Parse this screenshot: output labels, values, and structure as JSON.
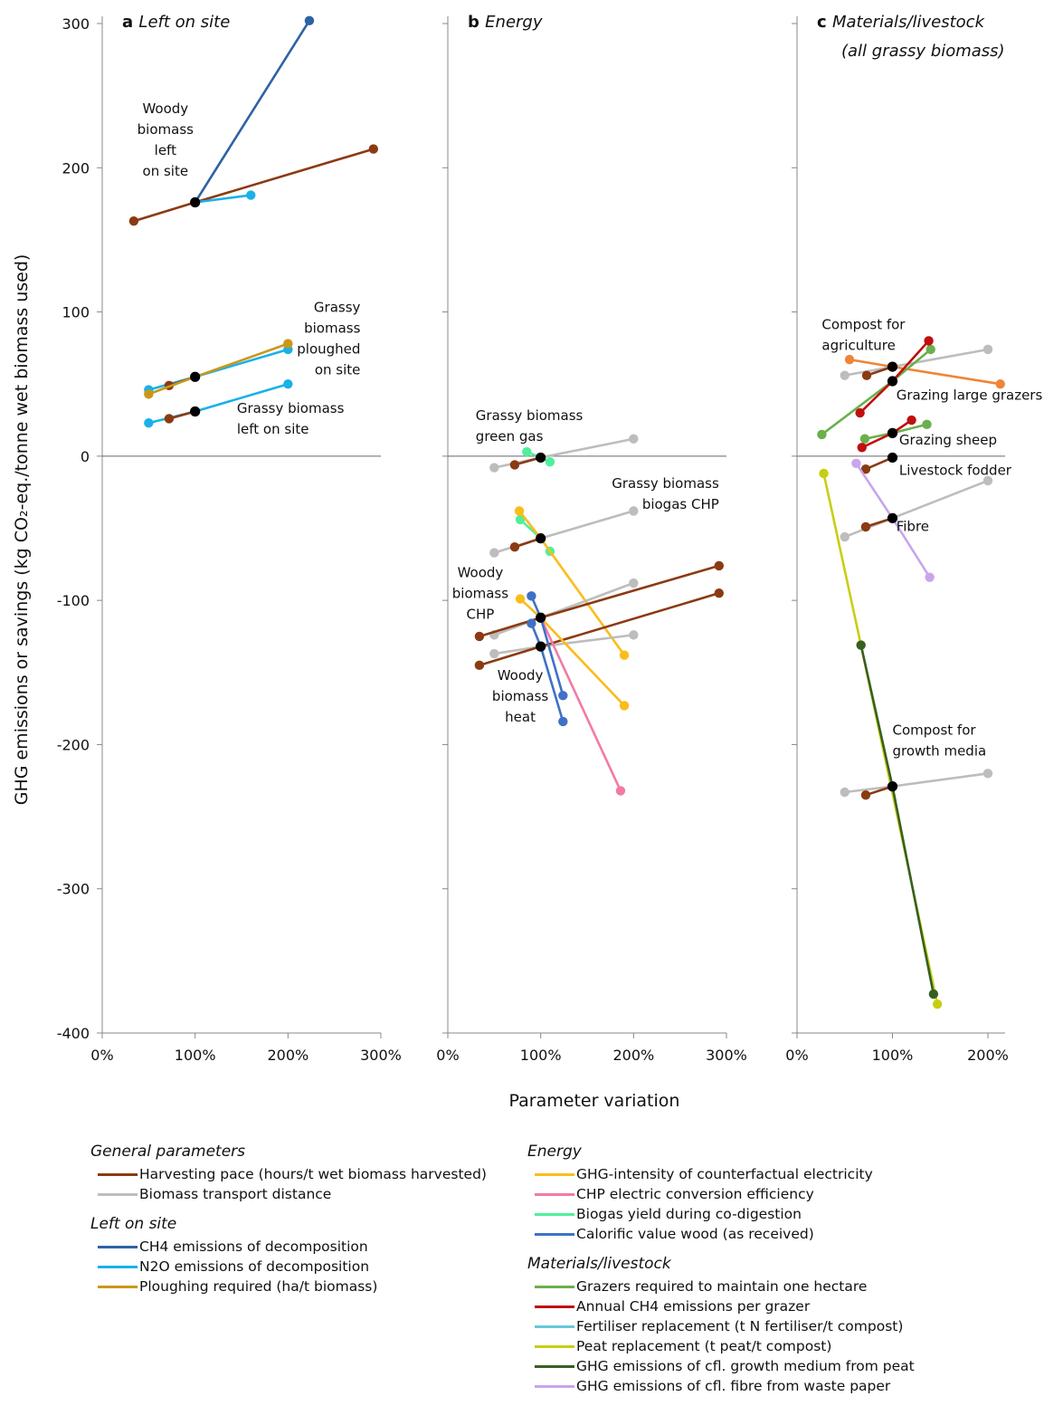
{
  "ylabel": "GHG emissions or savings (kg CO₂-eq./tonne wet biomass used)",
  "xlabel": "Parameter variation",
  "chart_data": [
    {
      "type": "line",
      "id": "a",
      "letter": "a",
      "title_lines": [
        "Left on site"
      ],
      "xlim": [
        0,
        300
      ],
      "ylim": [
        -400,
        300
      ],
      "xticks": [
        "0%",
        "100%",
        "200%",
        "300%"
      ],
      "yticks": [
        "300",
        "200",
        "100",
        "0",
        "-100",
        "-200",
        "-300",
        "-400"
      ],
      "series": [
        {
          "param": "ch4",
          "x": [
            100,
            223
          ],
          "y": [
            176,
            302
          ]
        },
        {
          "param": "harvest",
          "x": [
            34,
            100,
            292
          ],
          "y": [
            163,
            176,
            213
          ]
        },
        {
          "param": "n2o",
          "x": [
            100,
            160
          ],
          "y": [
            176,
            181
          ]
        },
        {
          "param": "n2o",
          "x": [
            50,
            100,
            200
          ],
          "y": [
            46,
            55,
            74
          ]
        },
        {
          "param": "harvest",
          "x": [
            72,
            100
          ],
          "y": [
            49,
            55
          ]
        },
        {
          "param": "plough",
          "x": [
            50,
            100,
            200
          ],
          "y": [
            43,
            55,
            78
          ]
        },
        {
          "param": "n2o",
          "x": [
            50,
            100,
            200
          ],
          "y": [
            23,
            31,
            50
          ]
        },
        {
          "param": "harvest",
          "x": [
            72,
            100
          ],
          "y": [
            26,
            31
          ]
        }
      ],
      "base_points": [
        {
          "x": 100,
          "y": 176
        },
        {
          "x": 100,
          "y": 55
        },
        {
          "x": 100,
          "y": 31
        }
      ],
      "annotations": [
        {
          "lines": [
            "Woody",
            "biomass",
            "left",
            "on site"
          ],
          "x": 68,
          "y": 238,
          "anchor": "middle"
        },
        {
          "lines": [
            "Grassy",
            "biomass",
            "ploughed",
            "on site"
          ],
          "x": 278,
          "y": 100,
          "anchor": "end"
        },
        {
          "lines": [
            "Grassy biomass",
            "left on site"
          ],
          "x": 145,
          "y": 30,
          "anchor": "start"
        }
      ]
    },
    {
      "type": "line",
      "id": "b",
      "letter": "b",
      "title_lines": [
        "Energy"
      ],
      "xlim": [
        0,
        300
      ],
      "ylim": [
        -400,
        300
      ],
      "xticks": [
        "0%",
        "100%",
        "200%",
        "300%"
      ],
      "yticks": [],
      "series": [
        {
          "param": "transport",
          "x": [
            50,
            100,
            200
          ],
          "y": [
            -8,
            -1,
            12
          ]
        },
        {
          "param": "harvest",
          "x": [
            72,
            100
          ],
          "y": [
            -6,
            -1
          ]
        },
        {
          "param": "biogas",
          "x": [
            85,
            100,
            110
          ],
          "y": [
            3,
            -1,
            -4
          ]
        },
        {
          "param": "transport",
          "x": [
            50,
            100,
            200
          ],
          "y": [
            -67,
            -57,
            -38
          ]
        },
        {
          "param": "harvest",
          "x": [
            72,
            100
          ],
          "y": [
            -63,
            -57
          ]
        },
        {
          "param": "biogas",
          "x": [
            78,
            100,
            110
          ],
          "y": [
            -44,
            -57,
            -66
          ]
        },
        {
          "param": "electricity",
          "x": [
            77,
            100,
            190
          ],
          "y": [
            -38,
            -57,
            -138
          ]
        },
        {
          "param": "transport",
          "x": [
            50,
            100,
            200
          ],
          "y": [
            -124,
            -112,
            -88
          ]
        },
        {
          "param": "harvest",
          "x": [
            34,
            100,
            292
          ],
          "y": [
            -125,
            -112,
            -76
          ]
        },
        {
          "param": "transport",
          "x": [
            50,
            100,
            200
          ],
          "y": [
            -137,
            -132,
            -124
          ]
        },
        {
          "param": "harvest",
          "x": [
            34,
            100,
            292
          ],
          "y": [
            -145,
            -132,
            -95
          ]
        },
        {
          "param": "electricity",
          "x": [
            78,
            100,
            190
          ],
          "y": [
            -99,
            -112,
            -173
          ]
        },
        {
          "param": "chp",
          "x": [
            100,
            186
          ],
          "y": [
            -112,
            -232
          ]
        },
        {
          "param": "calorific",
          "x": [
            90,
            100,
            124
          ],
          "y": [
            -97,
            -112,
            -166
          ]
        },
        {
          "param": "calorific",
          "x": [
            90,
            100,
            124
          ],
          "y": [
            -116,
            -132,
            -184
          ]
        }
      ],
      "base_points": [
        {
          "x": 100,
          "y": -1
        },
        {
          "x": 100,
          "y": -57
        },
        {
          "x": 100,
          "y": -112
        },
        {
          "x": 100,
          "y": -132
        }
      ],
      "annotations": [
        {
          "lines": [
            "Grassy biomass",
            "green gas"
          ],
          "x": 30,
          "y": 25,
          "anchor": "start"
        },
        {
          "lines": [
            "Grassy biomass",
            "biogas CHP"
          ],
          "x": 292,
          "y": -22,
          "anchor": "end"
        },
        {
          "lines": [
            "Woody",
            "biomass",
            "CHP"
          ],
          "x": 35,
          "y": -84,
          "anchor": "middle"
        },
        {
          "lines": [
            "Woody",
            "biomass",
            "heat"
          ],
          "x": 78,
          "y": -155,
          "anchor": "middle"
        }
      ]
    },
    {
      "type": "line",
      "id": "c",
      "letter": "c",
      "title_lines": [
        "Materials/livestock",
        "(all grassy biomass)"
      ],
      "xlim": [
        0,
        218
      ],
      "ylim": [
        -400,
        300
      ],
      "xticks": [
        "0%",
        "100%",
        "200%"
      ],
      "yticks": [],
      "series": [
        {
          "param": "transport",
          "x": [
            50,
            100,
            200
          ],
          "y": [
            56,
            62,
            74
          ]
        },
        {
          "param": "harvest",
          "x": [
            73,
            100
          ],
          "y": [
            56,
            62
          ]
        },
        {
          "param": "compost_other",
          "x": [
            55,
            100,
            213
          ],
          "y": [
            67,
            62,
            50
          ]
        },
        {
          "param": "grazers",
          "x": [
            26,
            100,
            140
          ],
          "y": [
            15,
            52,
            74
          ]
        },
        {
          "param": "ch4graze",
          "x": [
            66,
            100,
            138
          ],
          "y": [
            30,
            52,
            80
          ]
        },
        {
          "param": "grazers",
          "x": [
            71,
            100,
            136
          ],
          "y": [
            12,
            16,
            22
          ]
        },
        {
          "param": "ch4graze",
          "x": [
            68,
            100,
            120
          ],
          "y": [
            6,
            16,
            25
          ]
        },
        {
          "param": "harvest",
          "x": [
            72,
            100
          ],
          "y": [
            -9,
            -1
          ]
        },
        {
          "param": "transport",
          "x": [
            50,
            100,
            200
          ],
          "y": [
            -56,
            -43,
            -17
          ]
        },
        {
          "param": "harvest",
          "x": [
            72,
            100
          ],
          "y": [
            -49,
            -43
          ]
        },
        {
          "param": "paper",
          "x": [
            62,
            100,
            139
          ],
          "y": [
            -5,
            -43,
            -84
          ]
        },
        {
          "param": "peat",
          "x": [
            28,
            67,
            147
          ],
          "y": [
            -12,
            -131,
            -380
          ]
        },
        {
          "param": "cflpeat",
          "x": [
            67,
            100,
            143
          ],
          "y": [
            -131,
            -229,
            -373
          ]
        },
        {
          "param": "transport",
          "x": [
            50,
            100,
            200
          ],
          "y": [
            -233,
            -229,
            -220
          ]
        },
        {
          "param": "harvest",
          "x": [
            72,
            100
          ],
          "y": [
            -235,
            -229
          ]
        }
      ],
      "base_points": [
        {
          "x": 100,
          "y": 62
        },
        {
          "x": 100,
          "y": 52
        },
        {
          "x": 100,
          "y": 16
        },
        {
          "x": 100,
          "y": -1
        },
        {
          "x": 100,
          "y": -43
        },
        {
          "x": 100,
          "y": -229
        }
      ],
      "annotations": [
        {
          "lines": [
            "Compost for",
            "agriculture"
          ],
          "x": 26,
          "y": 88,
          "anchor": "start"
        },
        {
          "lines": [
            "Grazing large grazers"
          ],
          "x": 104,
          "y": 39,
          "anchor": "start"
        },
        {
          "lines": [
            "Grazing sheep"
          ],
          "x": 107,
          "y": 8,
          "anchor": "start"
        },
        {
          "lines": [
            "Livestock fodder"
          ],
          "x": 107,
          "y": -13,
          "anchor": "start"
        },
        {
          "lines": [
            "Fibre"
          ],
          "x": 104,
          "y": -52,
          "anchor": "start"
        },
        {
          "lines": [
            "Compost for",
            "growth media"
          ],
          "x": 100,
          "y": -193,
          "anchor": "start"
        }
      ]
    }
  ],
  "legend": {
    "left": [
      {
        "heading": "General parameters",
        "items": [
          {
            "label": "Harvesting pace (hours/t wet biomass harvested)",
            "color": "#8b3a12"
          },
          {
            "label": "Biomass transport distance",
            "color": "#bdbdbd"
          }
        ]
      },
      {
        "heading": "Left on site",
        "items": [
          {
            "label": "CH4 emissions of decomposition",
            "color": "#2e63a3"
          },
          {
            "label": "N2O emissions of decomposition",
            "color": "#19b1e8"
          },
          {
            "label": "Ploughing required (ha/t biomass)",
            "color": "#c9981a"
          }
        ]
      }
    ],
    "right": [
      {
        "heading": "Energy",
        "items": [
          {
            "label": "GHG-intensity of counterfactual electricity",
            "color": "#fbbc1b"
          },
          {
            "label": "CHP electric conversion efficiency",
            "color": "#f27ba2"
          },
          {
            "label": "Biogas yield during co-digestion",
            "color": "#4ff09a"
          },
          {
            "label": "Calorific value wood (as received)",
            "color": "#3f71c6"
          }
        ]
      },
      {
        "heading": "Materials/livestock",
        "items": [
          {
            "label": "Grazers required to maintain one hectare",
            "color": "#6ab04c"
          },
          {
            "label": "Annual CH4 emissions per grazer",
            "color": "#c00f0f"
          },
          {
            "label": "Fertiliser replacement (t N fertiliser/t compost)",
            "color": "#65c8dc"
          },
          {
            "label": "Peat replacement (t peat/t compost)",
            "color": "#c7ce12"
          },
          {
            "label": "GHG emissions of cfl. growth medium from peat",
            "color": "#375f22"
          },
          {
            "label": "GHG emissions of cfl. fibre from waste paper",
            "color": "#c8a5ec"
          }
        ]
      }
    ]
  },
  "colors": {
    "harvest": "#8b3a12",
    "transport": "#bdbdbd",
    "ch4": "#2e63a3",
    "n2o": "#19b1e8",
    "plough": "#c9981a",
    "electricity": "#fbbc1b",
    "chp": "#f27ba2",
    "biogas": "#4ff09a",
    "calorific": "#3f71c6",
    "grazers": "#6ab04c",
    "ch4graze": "#c00f0f",
    "fertiliser": "#65c8dc",
    "peat": "#c7ce12",
    "cflpeat": "#375f22",
    "paper": "#c8a5ec",
    "compost_other": "#ef8537",
    "base": "#000000"
  }
}
